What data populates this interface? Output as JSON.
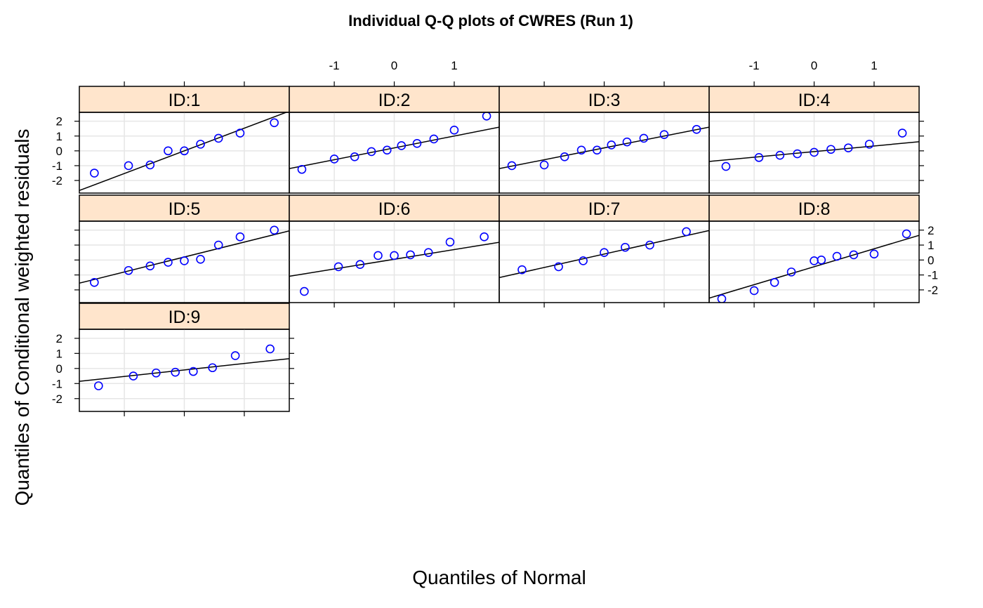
{
  "chart_data": {
    "type": "scatter",
    "title": "Individual Q-Q plots of CWRES (Run 1)",
    "xlabel": "Quantiles of Normal",
    "ylabel": "Quantiles of Conditional weighted residuals",
    "xlim": [
      -1.75,
      1.75
    ],
    "ylim": [
      -2.85,
      2.6
    ],
    "x_ticks": [
      -1,
      0,
      1
    ],
    "y_ticks": [
      -2,
      -1,
      0,
      1,
      2
    ],
    "grid": true,
    "colors": {
      "points": "#0000ff",
      "line": "#000000",
      "strip": "#ffe5cc",
      "grid": "#e6e6e6"
    },
    "panels": [
      {
        "label": "ID:1",
        "x": [
          -1.5,
          -0.93,
          -0.57,
          -0.27,
          0.0,
          0.27,
          0.57,
          0.93,
          1.5
        ],
        "y": [
          -1.5,
          -1.0,
          -0.95,
          0.0,
          0.0,
          0.45,
          0.85,
          1.2,
          1.9
        ],
        "line": {
          "intercept": 0.0,
          "slope": 1.53
        }
      },
      {
        "label": "ID:2",
        "x": [
          -1.54,
          -1.0,
          -0.66,
          -0.38,
          -0.12,
          0.12,
          0.38,
          0.66,
          1.0,
          1.54
        ],
        "y": [
          -1.25,
          -0.55,
          -0.4,
          -0.05,
          0.05,
          0.35,
          0.5,
          0.8,
          1.4,
          2.35
        ],
        "line": {
          "intercept": 0.2,
          "slope": 0.8
        }
      },
      {
        "label": "ID:3",
        "x": [
          -1.54,
          -1.0,
          -0.66,
          -0.38,
          -0.12,
          0.12,
          0.38,
          0.66,
          1.0,
          1.54
        ],
        "y": [
          -1.0,
          -0.95,
          -0.4,
          0.05,
          0.05,
          0.4,
          0.6,
          0.85,
          1.1,
          1.45
        ],
        "line": {
          "intercept": 0.2,
          "slope": 0.8
        }
      },
      {
        "label": "ID:4",
        "x": [
          -1.47,
          -0.92,
          -0.57,
          -0.28,
          0.0,
          0.28,
          0.57,
          0.92,
          1.47
        ],
        "y": [
          -1.05,
          -0.45,
          -0.3,
          -0.2,
          -0.1,
          0.1,
          0.2,
          0.45,
          1.2
        ],
        "line": {
          "intercept": -0.05,
          "slope": 0.38
        }
      },
      {
        "label": "ID:5",
        "x": [
          -1.5,
          -0.93,
          -0.57,
          -0.27,
          0.0,
          0.27,
          0.57,
          0.93,
          1.5
        ],
        "y": [
          -1.5,
          -0.7,
          -0.4,
          -0.15,
          -0.05,
          0.05,
          1.0,
          1.55,
          2.0
        ],
        "line": {
          "intercept": 0.2,
          "slope": 1.0
        }
      },
      {
        "label": "ID:6",
        "x": [
          -1.5,
          -0.93,
          -0.57,
          -0.27,
          0.0,
          0.27,
          0.57,
          0.93,
          1.5
        ],
        "y": [
          -2.1,
          -0.45,
          -0.3,
          0.3,
          0.3,
          0.35,
          0.5,
          1.2,
          1.55
        ],
        "line": {
          "intercept": 0.05,
          "slope": 0.65
        }
      },
      {
        "label": "ID:7",
        "x": [
          -1.37,
          -0.76,
          -0.35,
          0.0,
          0.35,
          0.76,
          1.37
        ],
        "y": [
          -0.65,
          -0.45,
          -0.05,
          0.5,
          0.85,
          1.0,
          1.9
        ],
        "line": {
          "intercept": 0.4,
          "slope": 0.9
        }
      },
      {
        "label": "ID:8",
        "x": [
          -1.54,
          -1.0,
          -0.66,
          -0.38,
          0.0,
          0.12,
          0.38,
          0.66,
          1.0,
          1.54
        ],
        "y": [
          -2.6,
          -2.05,
          -1.5,
          -0.8,
          -0.05,
          0.0,
          0.25,
          0.35,
          0.4,
          1.75
        ],
        "line": {
          "intercept": -0.45,
          "slope": 1.2
        }
      },
      {
        "label": "ID:9",
        "x": [
          -1.43,
          -0.85,
          -0.47,
          -0.15,
          0.15,
          0.47,
          0.85,
          1.43
        ],
        "y": [
          -1.15,
          -0.5,
          -0.3,
          -0.25,
          -0.2,
          0.05,
          0.85,
          1.3
        ],
        "line": {
          "intercept": -0.1,
          "slope": 0.43
        }
      }
    ]
  }
}
